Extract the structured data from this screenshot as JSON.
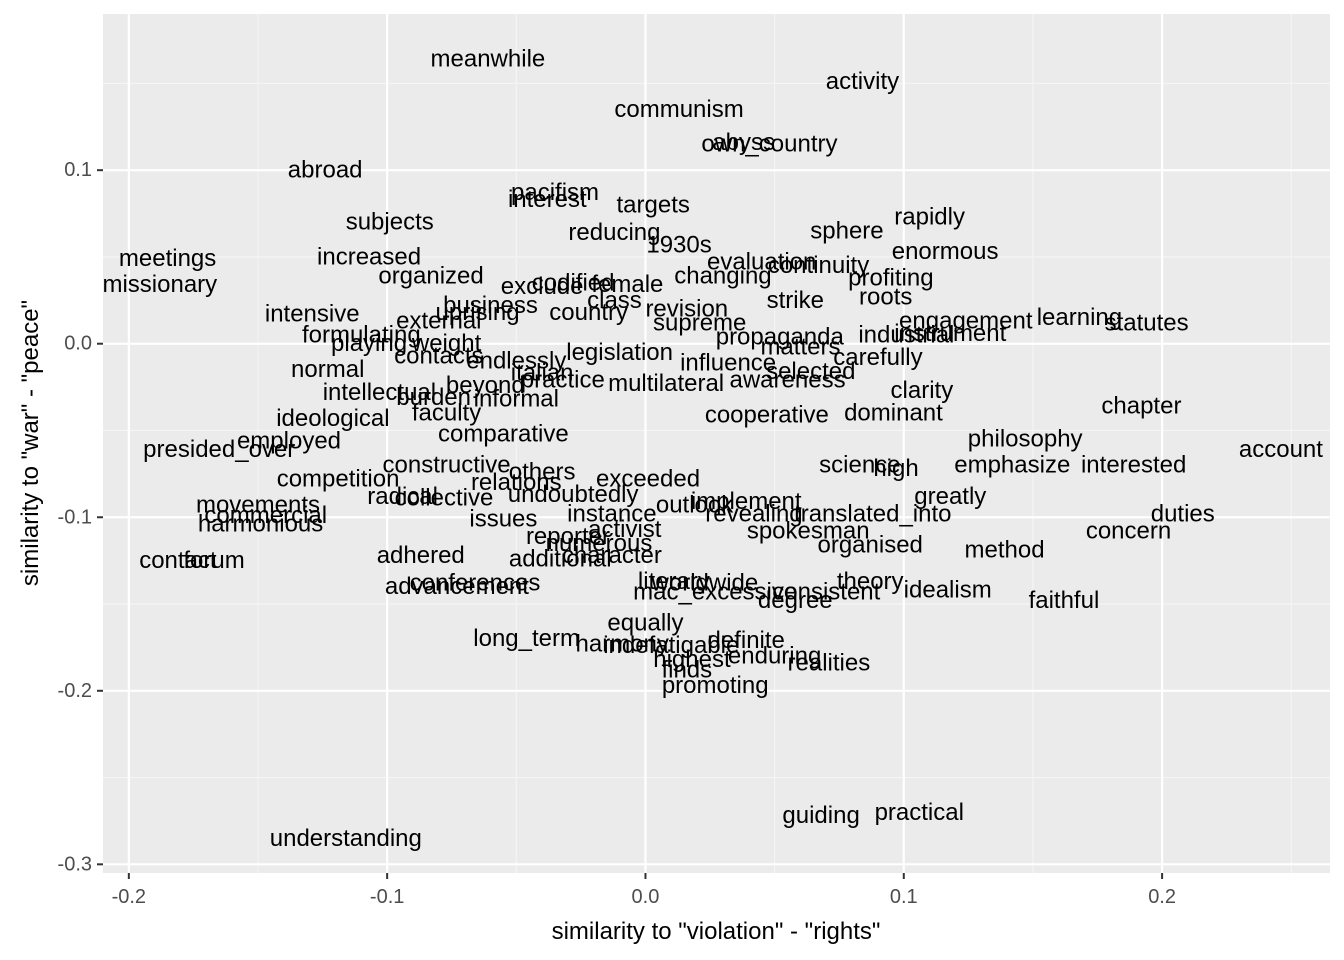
{
  "colors": {
    "panel_background": "#EBEBEB",
    "major_grid": "#FFFFFF",
    "minor_grid": "#F5F5F5",
    "tick_text": "#4D4D4D",
    "word_text": "#000000"
  },
  "chart_data": {
    "type": "scatter",
    "mark": "text",
    "xlabel": "similarity to \"violation\" - \"rights\"",
    "ylabel": "similarity to \"war\" - \"peace\"",
    "xlim": [
      -0.21,
      0.265
    ],
    "ylim": [
      -0.305,
      0.19
    ],
    "grid": true,
    "x_ticks": [
      -0.2,
      -0.1,
      0.0,
      0.1,
      0.2
    ],
    "x_tick_labels": [
      "-0.2",
      "-0.1",
      "0.0",
      "0.1",
      "0.2"
    ],
    "y_ticks": [
      -0.3,
      -0.2,
      -0.1,
      0.0,
      0.1
    ],
    "y_tick_labels": [
      "-0.3",
      "-0.2",
      "-0.1",
      "0.0",
      "0.1"
    ],
    "points": [
      {
        "label": "meanwhile",
        "x": -0.061,
        "y": 0.164
      },
      {
        "label": "activity",
        "x": 0.084,
        "y": 0.151
      },
      {
        "label": "communism",
        "x": 0.013,
        "y": 0.135
      },
      {
        "label": "own_country",
        "x": 0.048,
        "y": 0.115
      },
      {
        "label": "abyss",
        "x": 0.038,
        "y": 0.116
      },
      {
        "label": "abroad",
        "x": -0.124,
        "y": 0.1
      },
      {
        "label": "pacifism",
        "x": -0.035,
        "y": 0.087
      },
      {
        "label": "interest",
        "x": -0.038,
        "y": 0.083
      },
      {
        "label": "targets",
        "x": 0.003,
        "y": 0.08
      },
      {
        "label": "subjects",
        "x": -0.099,
        "y": 0.07
      },
      {
        "label": "rapidly",
        "x": 0.11,
        "y": 0.073
      },
      {
        "label": "sphere",
        "x": 0.078,
        "y": 0.065
      },
      {
        "label": "reducing",
        "x": -0.012,
        "y": 0.064
      },
      {
        "label": "1930s",
        "x": 0.013,
        "y": 0.057
      },
      {
        "label": "enormous",
        "x": 0.116,
        "y": 0.053
      },
      {
        "label": "meetings",
        "x": -0.185,
        "y": 0.049
      },
      {
        "label": "increased",
        "x": -0.107,
        "y": 0.05
      },
      {
        "label": "evaluation",
        "x": 0.045,
        "y": 0.047
      },
      {
        "label": "continuity",
        "x": 0.067,
        "y": 0.045
      },
      {
        "label": "missionary",
        "x": -0.188,
        "y": 0.034
      },
      {
        "label": "organized",
        "x": -0.083,
        "y": 0.039
      },
      {
        "label": "changing",
        "x": 0.03,
        "y": 0.039
      },
      {
        "label": "profiting",
        "x": 0.095,
        "y": 0.038
      },
      {
        "label": "codified",
        "x": -0.028,
        "y": 0.035
      },
      {
        "label": "female",
        "x": -0.007,
        "y": 0.034
      },
      {
        "label": "exclude",
        "x": -0.04,
        "y": 0.033
      },
      {
        "label": "roots",
        "x": 0.093,
        "y": 0.027
      },
      {
        "label": "strike",
        "x": 0.058,
        "y": 0.025
      },
      {
        "label": "class",
        "x": -0.012,
        "y": 0.025
      },
      {
        "label": "business",
        "x": -0.06,
        "y": 0.022
      },
      {
        "label": "revision",
        "x": 0.016,
        "y": 0.02
      },
      {
        "label": "country",
        "x": -0.022,
        "y": 0.018
      },
      {
        "label": "uprising",
        "x": -0.065,
        "y": 0.018
      },
      {
        "label": "intensive",
        "x": -0.129,
        "y": 0.017
      },
      {
        "label": "external",
        "x": -0.08,
        "y": 0.013
      },
      {
        "label": "engagement",
        "x": 0.124,
        "y": 0.013
      },
      {
        "label": "learning",
        "x": 0.168,
        "y": 0.015
      },
      {
        "label": "statutes",
        "x": 0.194,
        "y": 0.012
      },
      {
        "label": "supreme",
        "x": 0.021,
        "y": 0.012
      },
      {
        "label": "instrument",
        "x": 0.118,
        "y": 0.006
      },
      {
        "label": "formulating",
        "x": -0.11,
        "y": 0.005
      },
      {
        "label": "propaganda",
        "x": 0.052,
        "y": 0.004
      },
      {
        "label": "industrial",
        "x": 0.101,
        "y": 0.005
      },
      {
        "label": "weight",
        "x": -0.077,
        "y": 0.0
      },
      {
        "label": "playing",
        "x": -0.107,
        "y": 0.0
      },
      {
        "label": "matters",
        "x": 0.06,
        "y": -0.002
      },
      {
        "label": "contacts",
        "x": -0.08,
        "y": -0.007
      },
      {
        "label": "legislation",
        "x": -0.01,
        "y": -0.005
      },
      {
        "label": "carefully",
        "x": 0.09,
        "y": -0.008
      },
      {
        "label": "endlessly",
        "x": -0.05,
        "y": -0.01
      },
      {
        "label": "influence",
        "x": 0.032,
        "y": -0.011
      },
      {
        "label": "normal",
        "x": -0.123,
        "y": -0.015
      },
      {
        "label": "italian",
        "x": -0.04,
        "y": -0.017
      },
      {
        "label": "selected",
        "x": 0.064,
        "y": -0.016
      },
      {
        "label": "practice",
        "x": -0.032,
        "y": -0.021
      },
      {
        "label": "multilateral",
        "x": 0.008,
        "y": -0.023
      },
      {
        "label": "awareness",
        "x": 0.055,
        "y": -0.021
      },
      {
        "label": "beyond",
        "x": -0.062,
        "y": -0.024
      },
      {
        "label": "clarity",
        "x": 0.107,
        "y": -0.027
      },
      {
        "label": "intellectual",
        "x": -0.103,
        "y": -0.028
      },
      {
        "label": "informal",
        "x": -0.05,
        "y": -0.032
      },
      {
        "label": "burden",
        "x": -0.082,
        "y": -0.031
      },
      {
        "label": "chapter",
        "x": 0.192,
        "y": -0.036
      },
      {
        "label": "ideological",
        "x": -0.121,
        "y": -0.043
      },
      {
        "label": "faculty",
        "x": -0.077,
        "y": -0.04
      },
      {
        "label": "cooperative",
        "x": 0.047,
        "y": -0.041
      },
      {
        "label": "dominant",
        "x": 0.096,
        "y": -0.04
      },
      {
        "label": "philosophy",
        "x": 0.147,
        "y": -0.055
      },
      {
        "label": "employed",
        "x": -0.138,
        "y": -0.056
      },
      {
        "label": "presided_over",
        "x": -0.165,
        "y": -0.061
      },
      {
        "label": "comparative",
        "x": -0.055,
        "y": -0.052
      },
      {
        "label": "account",
        "x": 0.246,
        "y": -0.061
      },
      {
        "label": "science",
        "x": 0.083,
        "y": -0.07
      },
      {
        "label": "emphasize",
        "x": 0.142,
        "y": -0.07
      },
      {
        "label": "interested",
        "x": 0.189,
        "y": -0.07
      },
      {
        "label": "high",
        "x": 0.097,
        "y": -0.072
      },
      {
        "label": "competition",
        "x": -0.119,
        "y": -0.078
      },
      {
        "label": "constructive",
        "x": -0.077,
        "y": -0.07
      },
      {
        "label": "others",
        "x": -0.04,
        "y": -0.074
      },
      {
        "label": "relations",
        "x": -0.05,
        "y": -0.08
      },
      {
        "label": "exceeded",
        "x": 0.001,
        "y": -0.078
      },
      {
        "label": "radical",
        "x": -0.094,
        "y": -0.088
      },
      {
        "label": "undoubtedly",
        "x": -0.028,
        "y": -0.087
      },
      {
        "label": "collective",
        "x": -0.078,
        "y": -0.089
      },
      {
        "label": "movements",
        "x": -0.15,
        "y": -0.093
      },
      {
        "label": "outlook",
        "x": 0.019,
        "y": -0.093
      },
      {
        "label": "implement",
        "x": 0.039,
        "y": -0.091
      },
      {
        "label": "greatly",
        "x": 0.118,
        "y": -0.088
      },
      {
        "label": "commercial",
        "x": -0.147,
        "y": -0.099
      },
      {
        "label": "harmonious",
        "x": -0.149,
        "y": -0.104
      },
      {
        "label": "instance",
        "x": -0.013,
        "y": -0.098
      },
      {
        "label": "revealing",
        "x": 0.042,
        "y": -0.098
      },
      {
        "label": "translated_into",
        "x": 0.088,
        "y": -0.098
      },
      {
        "label": "duties",
        "x": 0.208,
        "y": -0.098
      },
      {
        "label": "issues",
        "x": -0.055,
        "y": -0.101
      },
      {
        "label": "concern",
        "x": 0.187,
        "y": -0.108
      },
      {
        "label": "activist",
        "x": -0.008,
        "y": -0.107
      },
      {
        "label": "spokesman",
        "x": 0.063,
        "y": -0.108
      },
      {
        "label": "reporter",
        "x": -0.03,
        "y": -0.111
      },
      {
        "label": "organised",
        "x": 0.087,
        "y": -0.116
      },
      {
        "label": "numerous",
        "x": -0.018,
        "y": -0.115
      },
      {
        "label": "method",
        "x": 0.139,
        "y": -0.119
      },
      {
        "label": "adhered",
        "x": -0.087,
        "y": -0.122
      },
      {
        "label": "contact",
        "x": -0.181,
        "y": -0.125
      },
      {
        "label": "forum",
        "x": -0.167,
        "y": -0.125
      },
      {
        "label": "character",
        "x": -0.013,
        "y": -0.122
      },
      {
        "label": "additional",
        "x": -0.033,
        "y": -0.124
      },
      {
        "label": "theory",
        "x": 0.087,
        "y": -0.137
      },
      {
        "label": "worldwide",
        "x": 0.023,
        "y": -0.138
      },
      {
        "label": "literary",
        "x": 0.011,
        "y": -0.137
      },
      {
        "label": "conferences",
        "x": -0.066,
        "y": -0.138
      },
      {
        "label": "advancement",
        "x": -0.073,
        "y": -0.14
      },
      {
        "label": "idealism",
        "x": 0.117,
        "y": -0.142
      },
      {
        "label": "consistent",
        "x": 0.07,
        "y": -0.143
      },
      {
        "label": "mac_excessive",
        "x": 0.027,
        "y": -0.143
      },
      {
        "label": "degree",
        "x": 0.058,
        "y": -0.148
      },
      {
        "label": "faithful",
        "x": 0.162,
        "y": -0.148
      },
      {
        "label": "equally",
        "x": 0.0,
        "y": -0.161
      },
      {
        "label": "long_term",
        "x": -0.046,
        "y": -0.17
      },
      {
        "label": "harmony",
        "x": -0.009,
        "y": -0.173
      },
      {
        "label": "definite",
        "x": 0.039,
        "y": -0.171
      },
      {
        "label": "indefatigable",
        "x": 0.01,
        "y": -0.174
      },
      {
        "label": "enduring",
        "x": 0.05,
        "y": -0.18
      },
      {
        "label": "highest",
        "x": 0.018,
        "y": -0.182
      },
      {
        "label": "realities",
        "x": 0.071,
        "y": -0.184
      },
      {
        "label": "finds",
        "x": 0.016,
        "y": -0.188
      },
      {
        "label": "promoting",
        "x": 0.027,
        "y": -0.197
      },
      {
        "label": "guiding",
        "x": 0.068,
        "y": -0.272
      },
      {
        "label": "practical",
        "x": 0.106,
        "y": -0.27
      },
      {
        "label": "understanding",
        "x": -0.116,
        "y": -0.285
      }
    ]
  }
}
